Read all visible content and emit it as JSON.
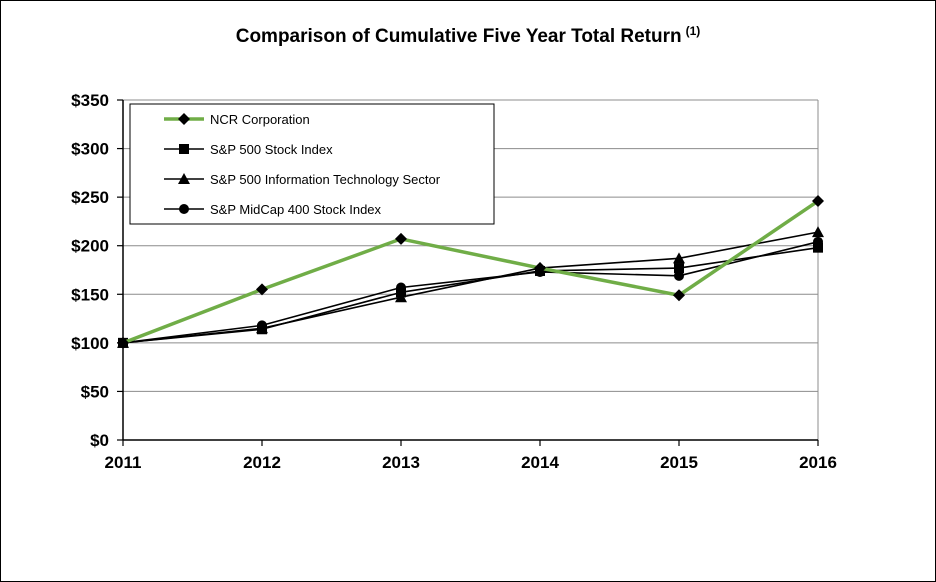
{
  "chart_data": {
    "type": "line",
    "title": "Comparison of Cumulative Five Year Total Return",
    "title_footnote": "(1)",
    "x": [
      "2011",
      "2012",
      "2013",
      "2014",
      "2015",
      "2016"
    ],
    "ylim": [
      0,
      350
    ],
    "yticks": [
      0,
      50,
      100,
      150,
      200,
      250,
      300,
      350
    ],
    "ytick_labels": [
      "$0",
      "$50",
      "$100",
      "$150",
      "$200",
      "$250",
      "$300",
      "$350"
    ],
    "grid": true,
    "legend_position": "top-left",
    "series": [
      {
        "name": "NCR Corporation",
        "values": [
          100,
          155,
          207,
          177,
          149,
          246
        ],
        "color": "#70ad47",
        "marker": "diamond"
      },
      {
        "name": "S&P 500 Stock Index",
        "values": [
          100,
          114,
          152,
          174,
          177,
          198
        ],
        "color": "#000000",
        "marker": "square"
      },
      {
        "name": "S&P 500 Information Technology Sector",
        "values": [
          100,
          115,
          147,
          177,
          187,
          214
        ],
        "color": "#000000",
        "marker": "triangle"
      },
      {
        "name": "S&P MidCap 400 Stock Index",
        "values": [
          100,
          118,
          157,
          173,
          169,
          204
        ],
        "color": "#000000",
        "marker": "circle"
      }
    ]
  }
}
